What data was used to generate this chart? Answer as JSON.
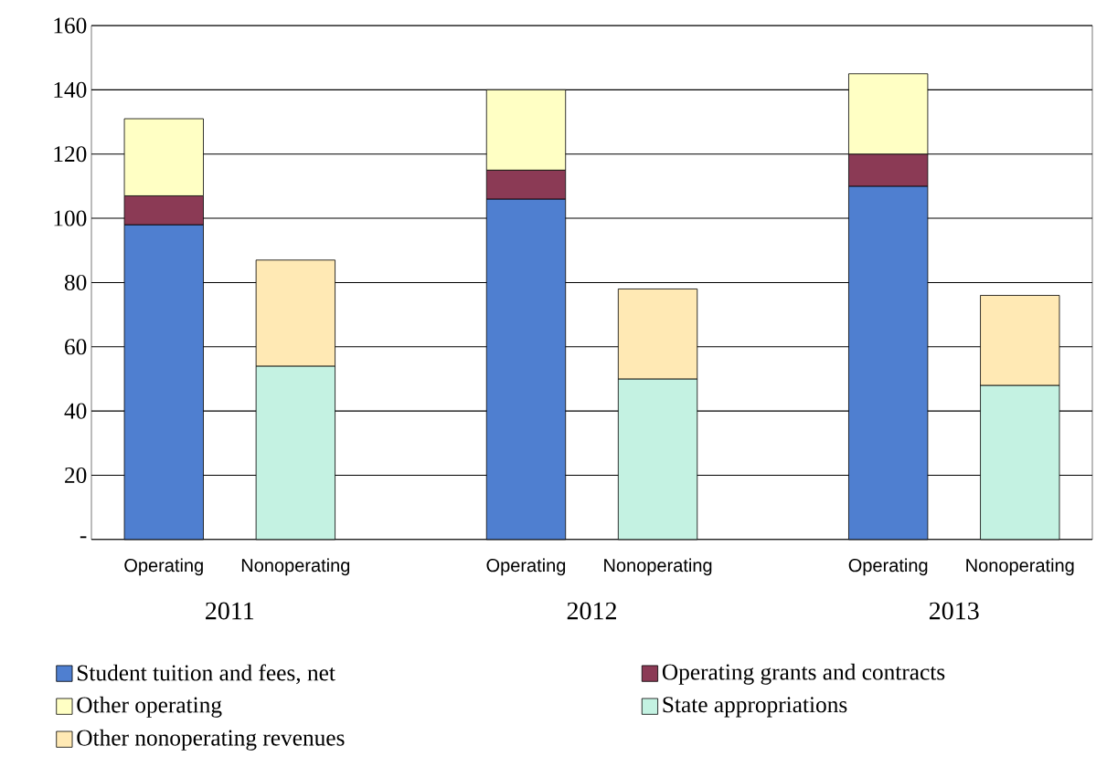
{
  "chart_data": {
    "type": "bar",
    "stacked": true,
    "categories": [
      "Operating",
      "Nonoperating",
      "Operating",
      "Nonoperating",
      "Operating",
      "Nonoperating"
    ],
    "series": [
      {
        "name": "Student tuition and fees, net",
        "color": "#4f7fd0",
        "values": [
          98,
          null,
          106,
          null,
          110,
          null
        ]
      },
      {
        "name": "Operating grants and contracts",
        "color": "#8b3a55",
        "values": [
          9,
          null,
          9,
          null,
          10,
          null
        ]
      },
      {
        "name": "Other operating",
        "color": "#ffffc4",
        "values": [
          24,
          null,
          25,
          null,
          25,
          null
        ]
      },
      {
        "name": "State appropriations",
        "color": "#c4f2e2",
        "values": [
          null,
          54,
          null,
          50,
          null,
          48
        ]
      },
      {
        "name": "Other nonoperating revenues",
        "color": "#ffe9b4",
        "values": [
          null,
          33,
          null,
          28,
          null,
          28
        ]
      }
    ],
    "annotations": [
      "2011",
      "2012",
      "2013"
    ],
    "ylim": [
      0,
      160
    ],
    "yticks": [
      {
        "value": 0,
        "label": "-"
      },
      20,
      40,
      60,
      80,
      100,
      120,
      140,
      160
    ],
    "grid": "y",
    "legend": "bottom"
  }
}
